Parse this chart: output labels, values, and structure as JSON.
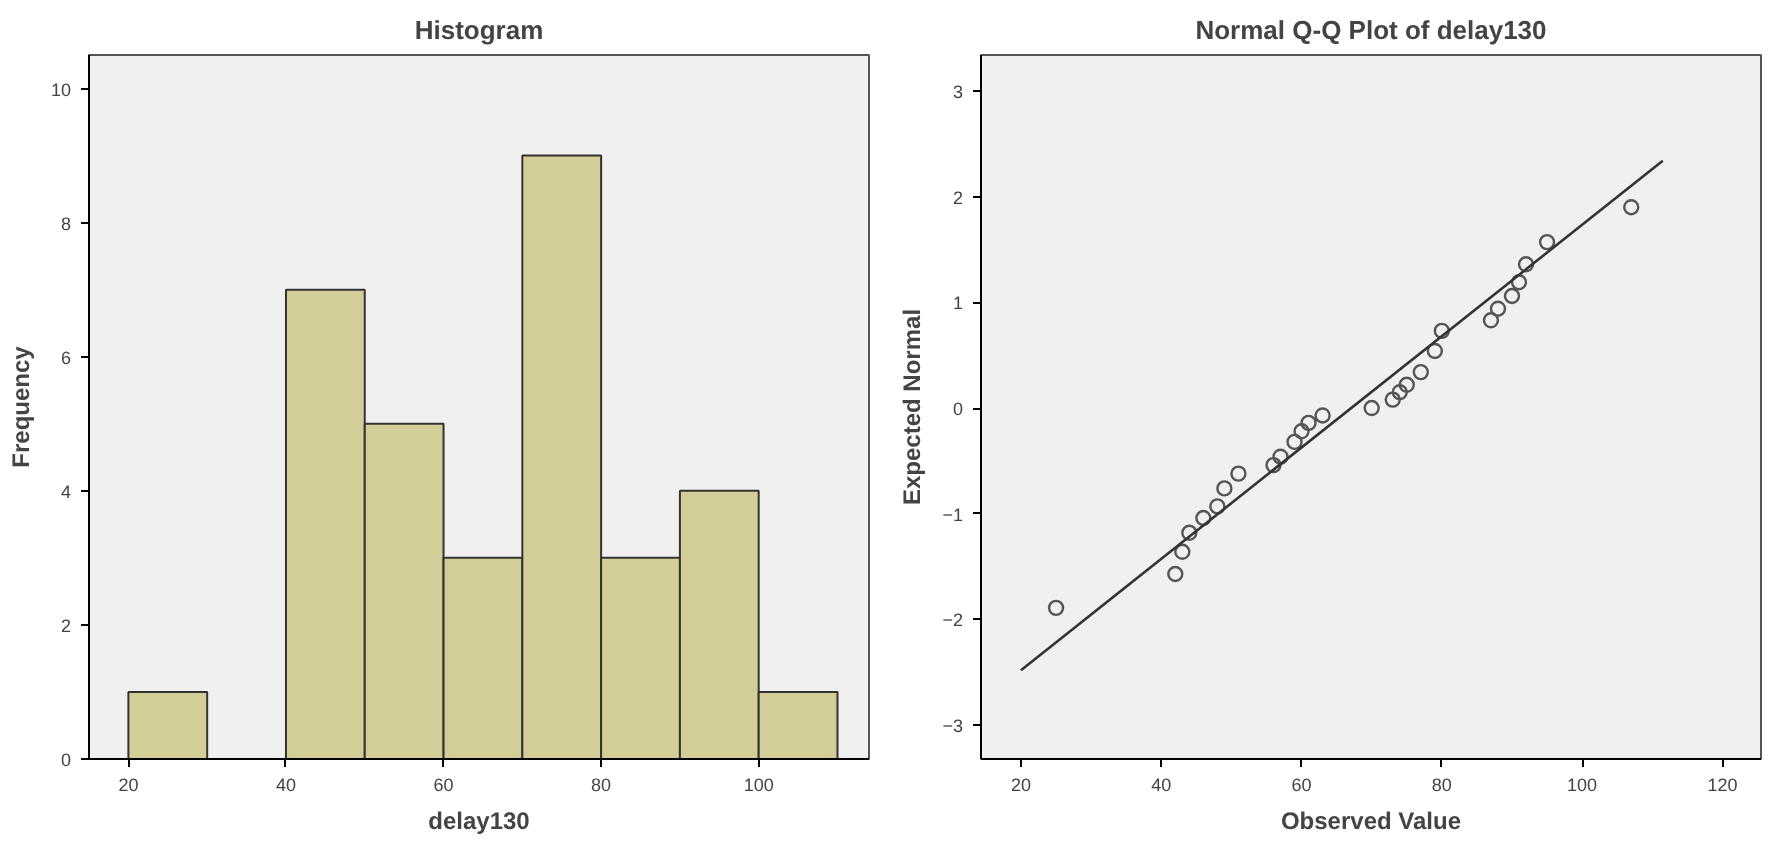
{
  "chart_data": [
    {
      "type": "histogram",
      "title": "Histogram",
      "xlabel": "delay130",
      "ylabel": "Frequency",
      "bins": [
        20,
        30,
        40,
        50,
        60,
        70,
        80,
        90,
        100,
        110
      ],
      "values": [
        1,
        0,
        7,
        5,
        3,
        9,
        3,
        4,
        1
      ],
      "color": "#d3ce97",
      "xlim": [
        15,
        114
      ],
      "ylim": [
        0,
        10.5
      ],
      "xticks": [
        20,
        40,
        60,
        80,
        100
      ],
      "yticks": [
        0,
        2,
        4,
        6,
        8,
        10
      ],
      "grid": false
    },
    {
      "type": "scatter",
      "title": "Normal Q-Q Plot of delay130",
      "xlabel": "Observed Value",
      "ylabel": "Expected Normal",
      "xlim": [
        14.3,
        125.5
      ],
      "ylim": [
        -3.32,
        3.34
      ],
      "xticks": [
        20,
        40,
        60,
        80,
        100,
        120
      ],
      "yticks": [
        -3,
        -2,
        -1,
        0,
        1,
        2,
        3
      ],
      "grid": false,
      "series": [
        {
          "type": "scatter",
          "marker": "circle",
          "color": "#555555",
          "x": [
            25,
            42,
            43,
            44,
            46,
            48,
            49,
            51,
            56,
            57,
            59,
            60,
            61,
            63,
            70,
            73,
            74,
            75,
            77,
            79,
            80,
            87,
            88,
            90,
            91,
            92,
            95,
            107
          ],
          "values": [
            -1.89,
            -1.57,
            -1.36,
            -1.18,
            -1.04,
            -0.93,
            -0.76,
            -0.62,
            -0.54,
            -0.46,
            -0.32,
            -0.22,
            -0.14,
            -0.07,
            0.0,
            0.08,
            0.15,
            0.22,
            0.34,
            0.54,
            0.73,
            0.83,
            0.94,
            1.06,
            1.19,
            1.36,
            1.57,
            1.9
          ]
        },
        {
          "type": "line",
          "marker": "none",
          "color": "#333333",
          "x": [
            20,
            111.5
          ],
          "values": [
            -2.48,
            2.34
          ]
        }
      ]
    }
  ]
}
